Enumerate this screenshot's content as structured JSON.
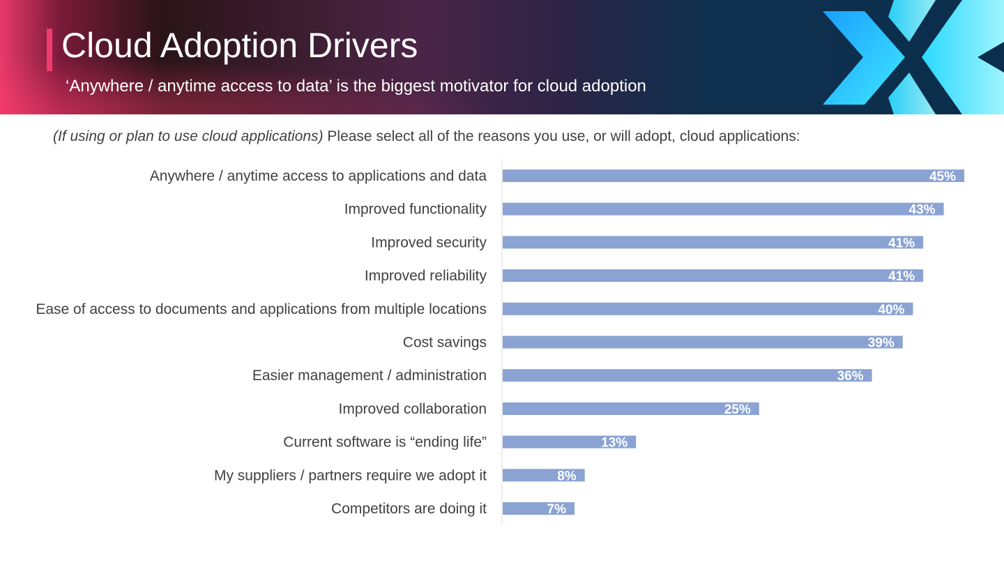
{
  "header": {
    "title": "Cloud Adoption Drivers",
    "subtitle": "‘Anywhere / anytime access to data’ is the biggest motivator for cloud adoption"
  },
  "question": {
    "qualifier": "(If using or plan to use cloud applications)",
    "text": "Please select all of the reasons you use, or will adopt, cloud applications:"
  },
  "colors": {
    "bar": "#8aa3d3",
    "accent": "#ef3b6e",
    "text": "#404040"
  },
  "chart_data": {
    "type": "bar",
    "orientation": "horizontal",
    "title": "",
    "xlabel": "",
    "ylabel": "",
    "categories": [
      "Anywhere / anytime access to applications and data",
      "Improved functionality",
      "Improved security",
      "Improved reliability",
      "Ease of access to documents and applications from multiple locations",
      "Cost savings",
      "Easier management / administration",
      "Improved collaboration",
      "Current software is “ending life”",
      "My suppliers / partners require we adopt it",
      "Competitors are doing it"
    ],
    "values": [
      45,
      43,
      41,
      41,
      40,
      39,
      36,
      25,
      13,
      8,
      7
    ],
    "value_labels": [
      "45%",
      "43%",
      "41%",
      "41%",
      "40%",
      "39%",
      "36%",
      "25%",
      "13%",
      "8%",
      "7%"
    ],
    "value_suffix": "%",
    "xlim": [
      0,
      45
    ],
    "grid": false,
    "legend": "none"
  }
}
